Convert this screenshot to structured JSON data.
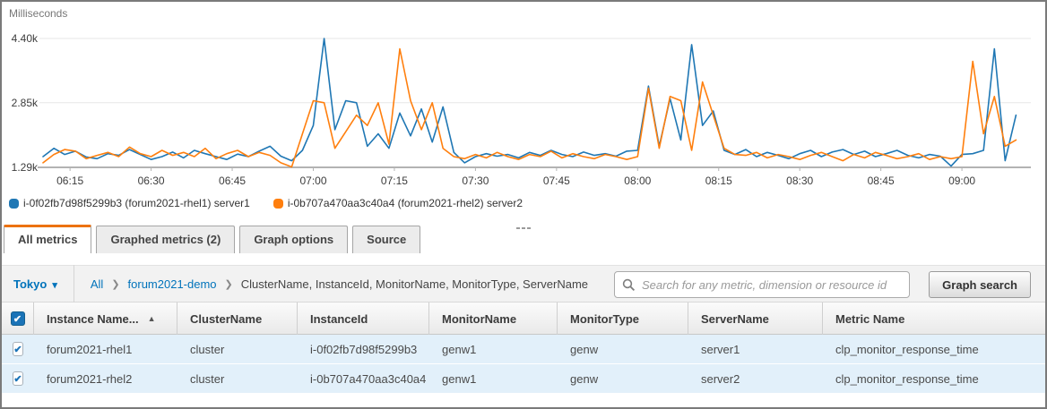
{
  "chart": {
    "unit_label": "Milliseconds",
    "y_ticks": [
      {
        "value": 4400,
        "label": "4.40k"
      },
      {
        "value": 2850,
        "label": "2.85k"
      },
      {
        "value": 1290,
        "label": "1.29k"
      }
    ],
    "x_ticks": [
      "06:15",
      "06:30",
      "06:45",
      "07:00",
      "07:15",
      "07:30",
      "07:45",
      "08:00",
      "08:15",
      "08:30",
      "08:45",
      "09:00"
    ],
    "legend": [
      {
        "label": "i-0f02fb7d98f5299b3 (forum2021-rhel1) server1",
        "color": "#1f77b4"
      },
      {
        "label": "i-0b707a470aa3c40a4 (forum2021-rhel2) server2",
        "color": "#ff7f0e"
      }
    ]
  },
  "chart_data": {
    "type": "line",
    "title": "",
    "xlabel": "",
    "ylabel": "Milliseconds",
    "ylim": [
      1290,
      4400
    ],
    "grid": true,
    "legend_position": "bottom-left",
    "x_start": "06:10",
    "x_step_minutes": 2,
    "series": [
      {
        "name": "i-0f02fb7d98f5299b3 (forum2021-rhel1) server1",
        "color": "#1f77b4",
        "values": [
          1550,
          1750,
          1600,
          1680,
          1540,
          1500,
          1620,
          1580,
          1720,
          1600,
          1480,
          1550,
          1660,
          1520,
          1700,
          1620,
          1550,
          1480,
          1610,
          1550,
          1680,
          1800,
          1560,
          1450,
          1700,
          2300,
          4400,
          2200,
          2900,
          2850,
          1800,
          2100,
          1750,
          2600,
          2050,
          2700,
          1900,
          2750,
          1650,
          1400,
          1550,
          1620,
          1560,
          1600,
          1520,
          1650,
          1580,
          1700,
          1600,
          1550,
          1660,
          1580,
          1620,
          1560,
          1680,
          1700,
          3250,
          1800,
          2950,
          1950,
          4250,
          2300,
          2650,
          1700,
          1600,
          1720,
          1550,
          1650,
          1580,
          1500,
          1620,
          1700,
          1550,
          1660,
          1720,
          1600,
          1680,
          1550,
          1620,
          1700,
          1580,
          1520,
          1600,
          1560,
          1320,
          1600,
          1620,
          1700,
          4150,
          1450,
          2550
        ]
      },
      {
        "name": "i-0b707a470aa3c40a4 (forum2021-rhel2) server2",
        "color": "#ff7f0e",
        "values": [
          1400,
          1600,
          1720,
          1680,
          1500,
          1580,
          1650,
          1550,
          1780,
          1620,
          1550,
          1700,
          1580,
          1650,
          1550,
          1750,
          1500,
          1620,
          1700,
          1550,
          1650,
          1580,
          1400,
          1300,
          2100,
          2900,
          2850,
          1750,
          2150,
          2550,
          2300,
          2850,
          1850,
          4150,
          2900,
          2200,
          2850,
          1750,
          1550,
          1500,
          1600,
          1520,
          1650,
          1550,
          1480,
          1600,
          1550,
          1680,
          1520,
          1620,
          1550,
          1500,
          1600,
          1550,
          1480,
          1550,
          3200,
          1750,
          3000,
          2900,
          1700,
          3350,
          2550,
          1750,
          1600,
          1580,
          1650,
          1520,
          1600,
          1550,
          1480,
          1580,
          1650,
          1550,
          1450,
          1600,
          1520,
          1650,
          1580,
          1500,
          1550,
          1620,
          1480,
          1550,
          1500,
          1550,
          3850,
          2100,
          3000,
          1800,
          1950
        ]
      }
    ]
  },
  "tabs": [
    {
      "label": "All metrics",
      "active": true
    },
    {
      "label": "Graphed metrics (2)",
      "active": false
    },
    {
      "label": "Graph options",
      "active": false
    },
    {
      "label": "Source",
      "active": false
    }
  ],
  "toolbar": {
    "region": "Tokyo",
    "region_caret": "▾",
    "breadcrumb_links": [
      "All",
      "forum2021-demo"
    ],
    "breadcrumb_current": "ClusterName, InstanceId, MonitorName, MonitorType, ServerName",
    "breadcrumb_separator": "❯",
    "search_placeholder": "Search for any metric, dimension or resource id",
    "graph_search_label": "Graph search"
  },
  "table": {
    "headers": [
      "Instance Name...",
      "ClusterName",
      "InstanceId",
      "MonitorName",
      "MonitorType",
      "ServerName",
      "Metric Name"
    ],
    "sort_arrow": "▲",
    "check_glyph": "✔",
    "rows": [
      {
        "checked": true,
        "cells": [
          "forum2021-rhel1",
          "cluster",
          "i-0f02fb7d98f5299b3",
          "genw1",
          "genw",
          "server1",
          "clp_monitor_response_time"
        ]
      },
      {
        "checked": true,
        "cells": [
          "forum2021-rhel2",
          "cluster",
          "i-0b707a470aa3c40a4",
          "genw1",
          "genw",
          "server2",
          "clp_monitor_response_time"
        ]
      }
    ]
  }
}
